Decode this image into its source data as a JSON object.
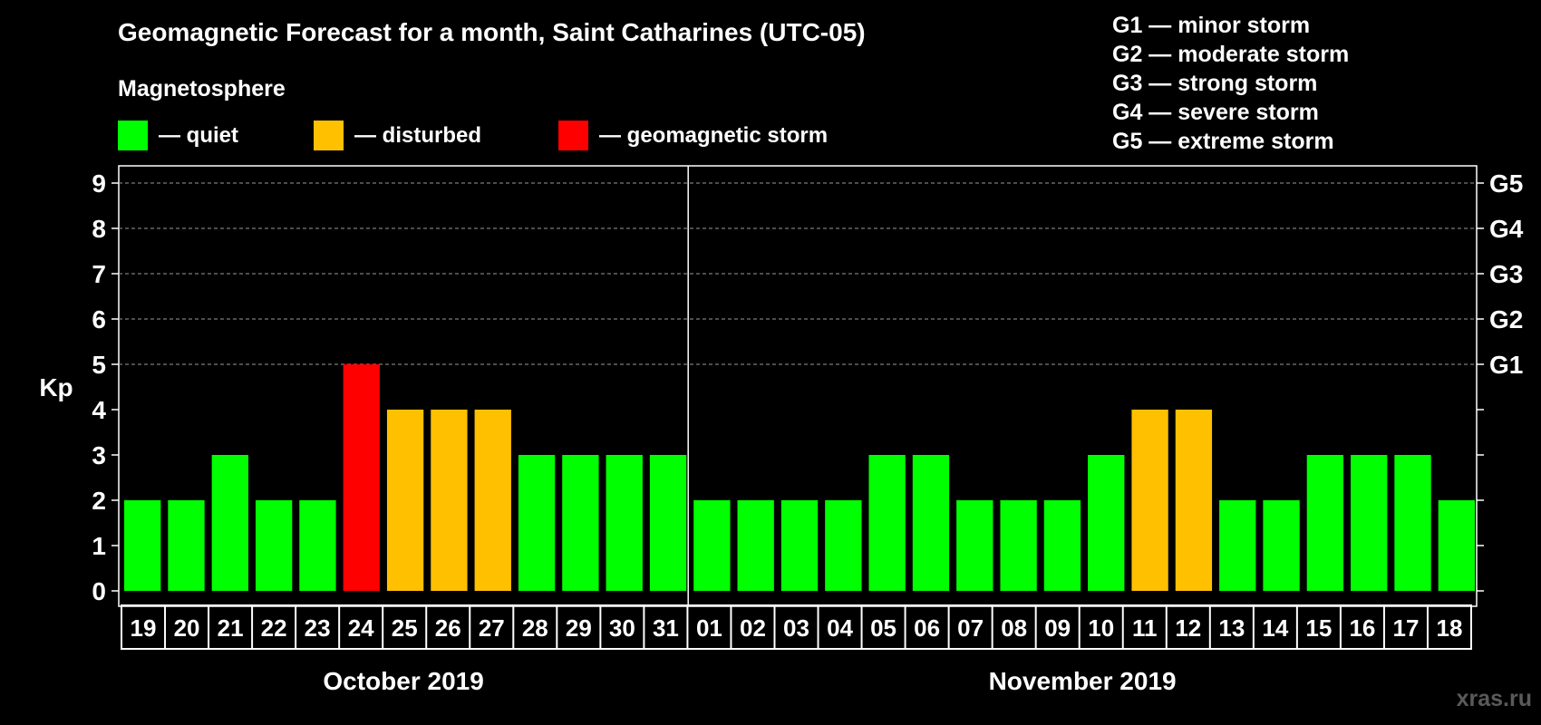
{
  "chart_data": {
    "type": "bar",
    "title": "Geomagnetic Forecast for a month, Saint Catharines  (UTC-05)",
    "subtitle": "Magnetosphere",
    "ylabel": "Kp",
    "ylim": [
      0,
      9
    ],
    "yticks": [
      "0",
      "1",
      "2",
      "3",
      "4",
      "5",
      "6",
      "7",
      "8",
      "9"
    ],
    "right_axis_labels": [
      {
        "kp": 5,
        "label": "G1"
      },
      {
        "kp": 6,
        "label": "G2"
      },
      {
        "kp": 7,
        "label": "G3"
      },
      {
        "kp": 8,
        "label": "G4"
      },
      {
        "kp": 9,
        "label": "G5"
      }
    ],
    "categories": [
      "19",
      "20",
      "21",
      "22",
      "23",
      "24",
      "25",
      "26",
      "27",
      "28",
      "29",
      "30",
      "31",
      "01",
      "02",
      "03",
      "04",
      "05",
      "06",
      "07",
      "08",
      "09",
      "10",
      "11",
      "12",
      "13",
      "14",
      "15",
      "16",
      "17",
      "18"
    ],
    "values": [
      2,
      2,
      3,
      2,
      2,
      5,
      4,
      4,
      4,
      3,
      3,
      3,
      3,
      2,
      2,
      2,
      2,
      3,
      3,
      2,
      2,
      2,
      3,
      4,
      4,
      2,
      2,
      3,
      3,
      3,
      2
    ],
    "months": [
      {
        "label": "October 2019",
        "first_index": 0,
        "last_index": 12
      },
      {
        "label": "November 2019",
        "first_index": 13,
        "last_index": 30
      }
    ],
    "grid": "dashed, Kp 5 to 9"
  },
  "legend": {
    "items": [
      {
        "label": "— quiet",
        "color": "#00ff00"
      },
      {
        "label": "— disturbed",
        "color": "#ffc000"
      },
      {
        "label": "— geomagnetic storm",
        "color": "#ff0000"
      }
    ]
  },
  "g_scale": [
    "G1 — minor storm",
    "G2 — moderate storm",
    "G3 — strong storm",
    "G4 — severe storm",
    "G5 — extreme storm"
  ],
  "watermark": "xras.ru"
}
